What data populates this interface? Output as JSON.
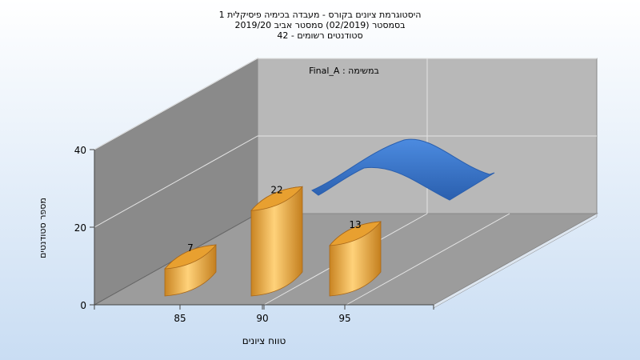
{
  "chart_data": {
    "type": "bar",
    "title_lines": [
      "היסטוגרמת ציונים בקורס - מעבדה בכימיה פיסיקלית 1",
      "בסמסטר  (02/2019)  סמסטר אביב 2019/20",
      "סטודנטים רשומים - 42"
    ],
    "categories": [
      "85",
      "90",
      "95"
    ],
    "values": [
      7,
      22,
      13
    ],
    "ylim": [
      0,
      40
    ],
    "yticks": [
      "0",
      "20",
      "40"
    ],
    "xlabel": "טווח ציונים",
    "ylabel": "מספר סטודנטים",
    "legend_text": "Final_A : במשימה",
    "grid": true,
    "colors": {
      "bar": "#E8A030",
      "bar_light": "#FFD580",
      "bar_dark": "#B8741A",
      "curve": "#3470C0",
      "back_wall": "#B8B8B8",
      "side_wall": "#8A8A8A",
      "floor": "#9C9C9C"
    }
  }
}
